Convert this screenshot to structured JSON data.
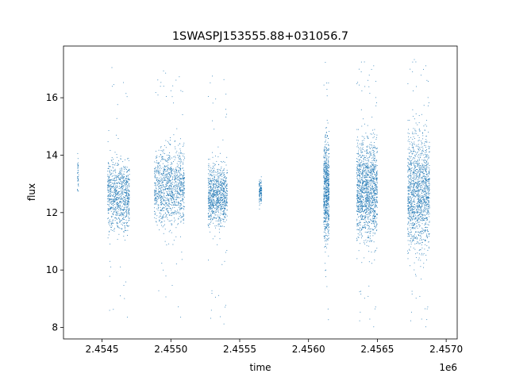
{
  "chart_data": {
    "type": "scatter",
    "title": "1SWASPJ153555.88+031056.7",
    "xlabel": "time",
    "ylabel": "flux",
    "x_offset_label": "1e6",
    "xlim": [
      2.45422,
      2.45708
    ],
    "ylim": [
      7.6,
      17.8
    ],
    "x_ticks": [
      2.4545,
      2.455,
      2.4555,
      2.456,
      2.4565,
      2.457
    ],
    "x_tick_labels": [
      "2.4545",
      "2.4550",
      "2.4555",
      "2.4560",
      "2.4565",
      "2.4570"
    ],
    "y_ticks": [
      8,
      10,
      12,
      14,
      16
    ],
    "y_tick_labels": [
      "8",
      "10",
      "12",
      "14",
      "16"
    ],
    "grid": false,
    "point_color": "#1f77b4",
    "series": [
      {
        "values_description_clusters": [
          {
            "x_min": 2.45432,
            "x_max": 2.45433,
            "y_center": 13.3,
            "y_spread": 0.6,
            "density": 40
          },
          {
            "x_min": 2.45454,
            "x_max": 2.4547,
            "y_center": 12.6,
            "y_spread": 1.1,
            "density": 900,
            "outliers_low": 8.2,
            "outliers_high": 17.3
          },
          {
            "x_min": 2.45488,
            "x_max": 2.4551,
            "y_center": 12.9,
            "y_spread": 1.2,
            "density": 1100,
            "outliers_low": 8.1,
            "outliers_high": 17.0
          },
          {
            "x_min": 2.45527,
            "x_max": 2.45541,
            "y_center": 12.6,
            "y_spread": 0.9,
            "density": 900,
            "outliers_low": 8.1,
            "outliers_high": 16.9
          },
          {
            "x_min": 2.45564,
            "x_max": 2.45566,
            "y_center": 12.7,
            "y_spread": 0.4,
            "density": 120
          },
          {
            "x_min": 2.45611,
            "x_max": 2.45615,
            "y_center": 12.8,
            "y_spread": 1.6,
            "density": 700,
            "outliers_low": 8.0,
            "outliers_high": 17.3
          },
          {
            "x_min": 2.45635,
            "x_max": 2.4565,
            "y_center": 12.8,
            "y_spread": 1.5,
            "density": 1400,
            "outliers_low": 8.0,
            "outliers_high": 17.4
          },
          {
            "x_min": 2.45672,
            "x_max": 2.45688,
            "y_center": 12.7,
            "y_spread": 1.8,
            "density": 1400,
            "outliers_low": 8.0,
            "outliers_high": 17.4
          }
        ]
      }
    ]
  }
}
